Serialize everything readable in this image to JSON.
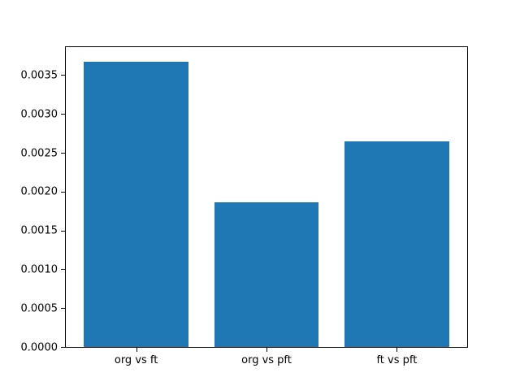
{
  "figure": {
    "background": "#ffffff",
    "axis_color": "#000000",
    "text_color": "#000000",
    "bar_color": "#1f77b4"
  },
  "chart_data": {
    "type": "bar",
    "title": "",
    "xlabel": "",
    "ylabel": "",
    "categories": [
      "org vs ft",
      "org vs pft",
      "ft vs pft"
    ],
    "values": [
      0.00367,
      0.00186,
      0.00265
    ],
    "bar_x": [
      0,
      1,
      2
    ],
    "bar_width": 0.8,
    "xlim": [
      -0.54,
      2.54
    ],
    "ylim": [
      0,
      0.00386
    ],
    "yticks": [
      0.0,
      0.0005,
      0.001,
      0.0015,
      0.002,
      0.0025,
      0.003,
      0.0035
    ],
    "ytick_labels": [
      "0.0000",
      "0.0005",
      "0.0010",
      "0.0015",
      "0.0020",
      "0.0025",
      "0.0030",
      "0.0035"
    ],
    "grid": false,
    "legend_position": "none"
  }
}
